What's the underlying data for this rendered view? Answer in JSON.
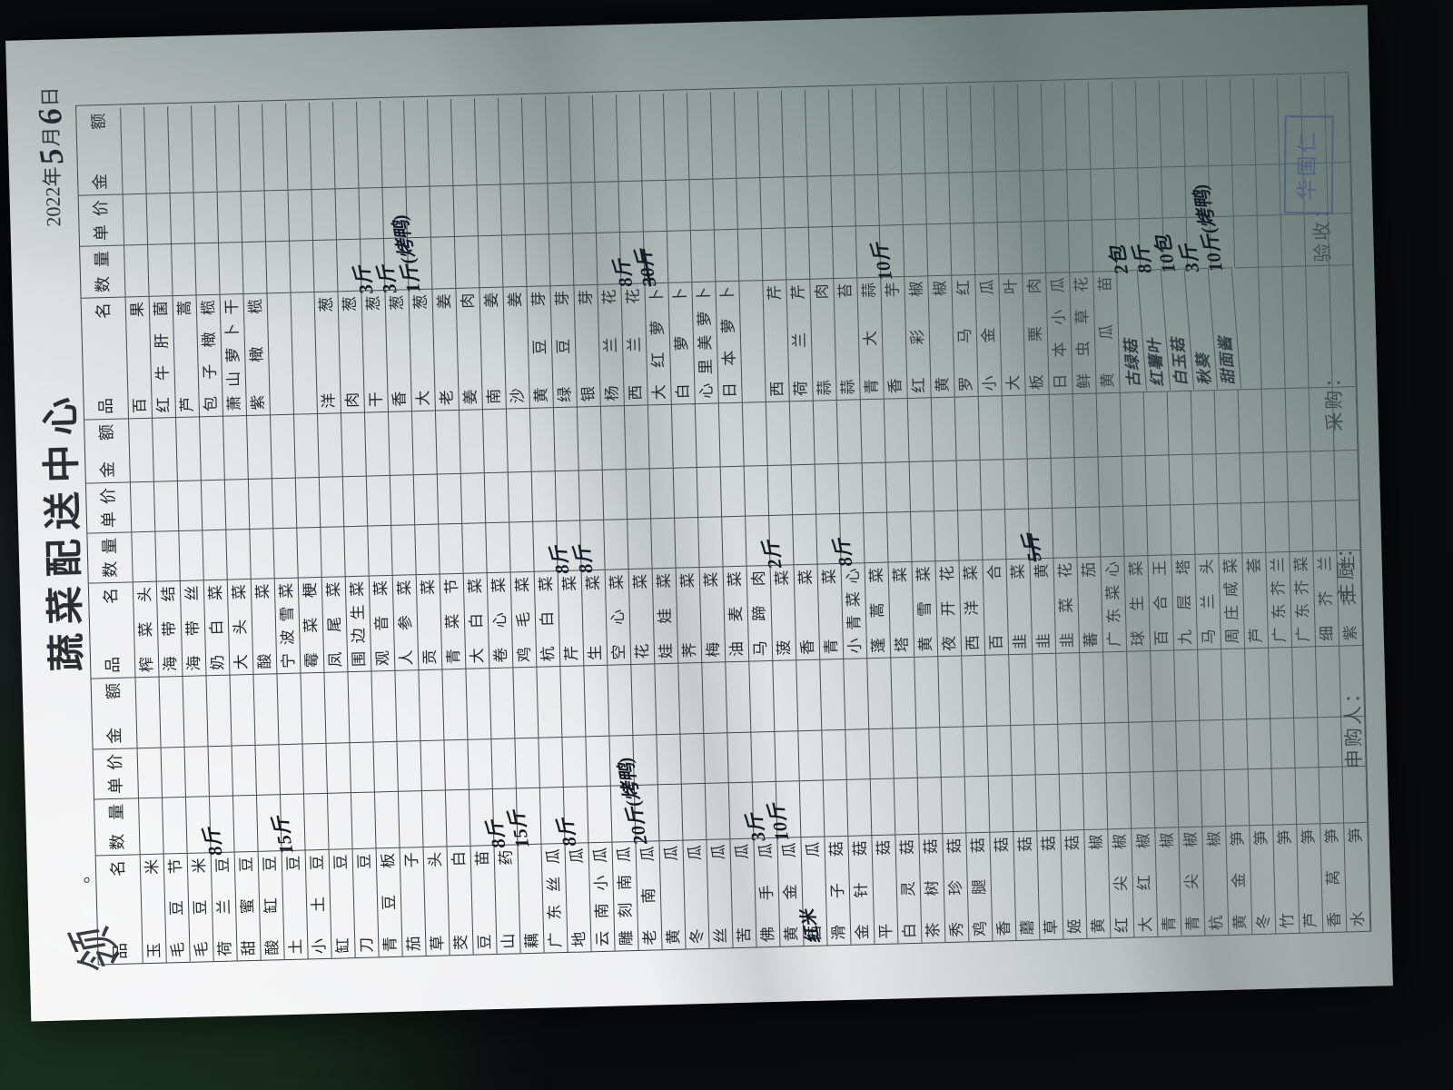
{
  "page": {
    "title": "蔬菜配送中心",
    "corner_scribble": "领",
    "corner_dot": "。",
    "date": {
      "year": "2022",
      "year_char": "年",
      "month_num": "5",
      "month_char": "月",
      "day_num": "6",
      "day_char": "日"
    },
    "header_labels": [
      "品　名",
      "数量",
      "单价",
      "金　额"
    ],
    "footer_labels": [
      {
        "label": "申购人："
      },
      {
        "label": "主厨："
      },
      {
        "label": "采购："
      },
      {
        "label": "验收："
      }
    ],
    "stamp_name": "华国仁",
    "groups": [
      {
        "rows": [
          {
            "n": "玉米"
          },
          {
            "n": "毛豆节"
          },
          {
            "n": "毛豆米"
          },
          {
            "n": "荷兰豆",
            "q": "8斤"
          },
          {
            "n": "甜蜜豆"
          },
          {
            "n": "酸缸豆"
          },
          {
            "n": "土豆",
            "q": "15斤"
          },
          {
            "n": "小土豆"
          },
          {
            "n": "缸豆"
          },
          {
            "n": "刀豆"
          },
          {
            "n": "青豆板"
          },
          {
            "n": "茄子"
          },
          {
            "n": "草头"
          },
          {
            "n": "茭白"
          },
          {
            "n": "豆苗"
          },
          {
            "n": "山药",
            "q": "8斤"
          },
          {
            "n": "藕",
            "q": "15斤"
          },
          {
            "n": "广东丝瓜"
          },
          {
            "n": "地瓜",
            "q": "8斤"
          },
          {
            "n": "云南小瓜"
          },
          {
            "n": "雕刻南瓜"
          },
          {
            "n": "老南瓜",
            "q": "20斤(烤鸭)"
          },
          {
            "n": "黄瓜"
          },
          {
            "n": "冬瓜"
          },
          {
            "n": "丝瓜"
          },
          {
            "n": "苦瓜"
          },
          {
            "n": "佛手瓜",
            "q": "3斤"
          },
          {
            "n": "黄金瓜",
            "q": "10斤"
          },
          {
            "n": "西瓜",
            "hn": "红米"
          },
          {
            "n": "滑子菇"
          },
          {
            "n": "金针菇"
          },
          {
            "n": "平菇"
          },
          {
            "n": "白灵菇"
          },
          {
            "n": "茶树菇"
          },
          {
            "n": "秀珍菇"
          },
          {
            "n": "鸡腿菇"
          },
          {
            "n": "香菇"
          },
          {
            "n": "蘑菇"
          },
          {
            "n": "草菇"
          },
          {
            "n": "姬菇"
          },
          {
            "n": "黄椒"
          },
          {
            "n": "红尖椒"
          },
          {
            "n": "大红椒"
          },
          {
            "n": "青椒"
          },
          {
            "n": "青尖椒"
          },
          {
            "n": "杭椒"
          },
          {
            "n": "黄金笋"
          },
          {
            "n": "冬笋"
          },
          {
            "n": "竹笋"
          },
          {
            "n": "芦笋"
          },
          {
            "n": "香莴笋"
          },
          {
            "n": "水笋"
          }
        ]
      },
      {
        "rows": [
          {
            "n": "榨菜头"
          },
          {
            "n": "海带结"
          },
          {
            "n": "海带丝"
          },
          {
            "n": "奶白菜"
          },
          {
            "n": "大头菜"
          },
          {
            "n": "酸菜"
          },
          {
            "n": "宁波雪菜"
          },
          {
            "n": "霉菜梗"
          },
          {
            "n": "凤尾菜"
          },
          {
            "n": "围边生菜"
          },
          {
            "n": "观音菜"
          },
          {
            "n": "人参菜"
          },
          {
            "n": "贡菜"
          },
          {
            "n": "青菜节"
          },
          {
            "n": "大白菜"
          },
          {
            "n": "卷心菜"
          },
          {
            "n": "鸡毛菜"
          },
          {
            "n": "杭白菜"
          },
          {
            "n": "芹菜",
            "q": "8斤"
          },
          {
            "n": "生菜",
            "q": "8斤"
          },
          {
            "n": "空心菜"
          },
          {
            "n": "花菜"
          },
          {
            "n": "娃娃菜"
          },
          {
            "n": "荠菜"
          },
          {
            "n": "梅菜"
          },
          {
            "n": "油麦菜"
          },
          {
            "n": "马蹄肉"
          },
          {
            "n": "菠菜",
            "q": "2斤"
          },
          {
            "n": "香菜"
          },
          {
            "n": "青菜"
          },
          {
            "n": "小青菜心",
            "q": "8斤"
          },
          {
            "n": "蓬蒿菜"
          },
          {
            "n": "塔菜"
          },
          {
            "n": "黄雪菜"
          },
          {
            "n": "夜开花"
          },
          {
            "n": "西洋菜"
          },
          {
            "n": "百合"
          },
          {
            "n": "韭菜"
          },
          {
            "n": "韭黄",
            "q": "5斤",
            "x": true
          },
          {
            "n": "韭菜花"
          },
          {
            "n": "蕃茄"
          },
          {
            "n": "广东菜心"
          },
          {
            "n": "球生菜"
          },
          {
            "n": "百合王"
          },
          {
            "n": "九层塔"
          },
          {
            "n": "马兰头"
          },
          {
            "n": "周庄咸菜"
          },
          {
            "n": "芦荟"
          },
          {
            "n": "广东芥兰"
          },
          {
            "n": "广东芥菜"
          },
          {
            "n": "细芥兰"
          },
          {
            "n": "紫芥兰"
          }
        ]
      },
      {
        "rows": [
          {
            "n": "百果"
          },
          {
            "n": "红牛肝菌"
          },
          {
            "n": "芦蒿"
          },
          {
            "n": "包子橄榄"
          },
          {
            "n": "萧山萝卜干"
          },
          {
            "n": "紫橄榄"
          },
          {
            "n": ""
          },
          {
            "n": ""
          },
          {
            "n": "洋葱"
          },
          {
            "n": "肉葱"
          },
          {
            "n": "干葱",
            "q": "3斤"
          },
          {
            "n": "香葱",
            "q": "3斤"
          },
          {
            "n": "大葱",
            "q": "1斤(烤鸭)"
          },
          {
            "n": "老姜"
          },
          {
            "n": "姜肉"
          },
          {
            "n": "南姜"
          },
          {
            "n": "沙姜"
          },
          {
            "n": "黄豆芽"
          },
          {
            "n": "绿豆芽"
          },
          {
            "n": "银芽"
          },
          {
            "n": "杨兰花"
          },
          {
            "n": "西兰花",
            "q": "8斤"
          },
          {
            "n": "大红萝卜",
            "q": "30斤",
            "x": true
          },
          {
            "n": "白萝卜"
          },
          {
            "n": "心里美萝卜"
          },
          {
            "n": "日本萝卜"
          },
          {
            "n": ""
          },
          {
            "n": "西芹"
          },
          {
            "n": "荷兰芹"
          },
          {
            "n": "蒜肉"
          },
          {
            "n": "蒜苔"
          },
          {
            "n": "青大蒜"
          },
          {
            "n": "香芋",
            "q": "10斤"
          },
          {
            "n": "红彩椒"
          },
          {
            "n": "黄椒"
          },
          {
            "n": "罗马红"
          },
          {
            "n": "小金瓜"
          },
          {
            "n": "大叶"
          },
          {
            "n": "板栗肉"
          },
          {
            "n": "日本小瓜"
          },
          {
            "n": "鲜虫草花"
          },
          {
            "n": "黄瓜苗"
          },
          {
            "n": "古绿菇",
            "q": "2包",
            "hw": true
          },
          {
            "n": "红薯叶",
            "q": "8斤",
            "hw": true
          },
          {
            "n": "白玉菇",
            "q": "10包",
            "hw": true
          },
          {
            "n": "秋葵",
            "q": "3斤",
            "hw": true
          },
          {
            "n": "甜面酱",
            "q": "10斤(烤鸭)",
            "hw": true
          },
          {
            "n": ""
          },
          {
            "n": ""
          },
          {
            "n": ""
          },
          {
            "n": ""
          },
          {
            "n": ""
          }
        ]
      }
    ]
  }
}
